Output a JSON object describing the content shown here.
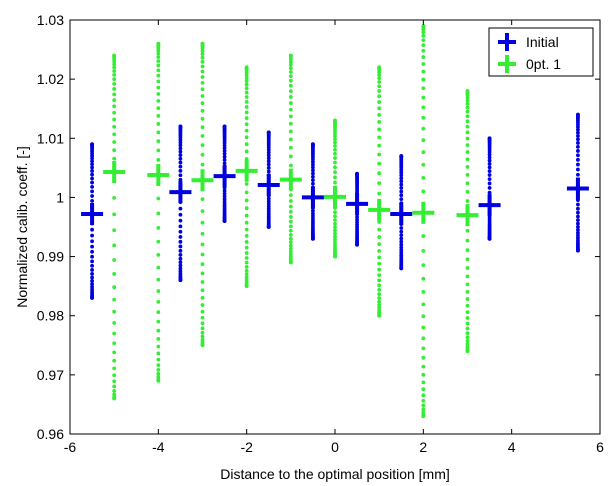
{
  "chart_data": {
    "type": "scatter",
    "title": "",
    "xlabel": "Distance to the optimal position [mm]",
    "ylabel": "Normalized calib. coeff. [-]",
    "xlim": [
      -6,
      6
    ],
    "ylim": [
      0.96,
      1.03
    ],
    "xticks": [
      -6,
      -4,
      -2,
      0,
      2,
      4,
      6
    ],
    "yticks": [
      0.96,
      0.97,
      0.98,
      0.99,
      1,
      1.01,
      1.02,
      1.03
    ],
    "xtick_labels": [
      "-6",
      "-4",
      "-2",
      "0",
      "2",
      "4",
      "6"
    ],
    "ytick_labels": [
      "0.96",
      "0.97",
      "0.98",
      "0.99",
      "1",
      "1.01",
      "1.02",
      "1.03"
    ],
    "grid": false,
    "legend_position": "top-right",
    "series": [
      {
        "name": "Initial",
        "color": "#0000e0",
        "mean_x": [
          -5.5,
          -3.5,
          -2.5,
          -1.5,
          -0.5,
          0.5,
          1.5,
          3.5,
          5.5
        ],
        "mean_y": [
          0.9972,
          1.0009,
          1.0036,
          1.0021,
          1.0,
          0.9989,
          0.9972,
          0.9987,
          1.0015
        ],
        "spread_x": [
          -5.5,
          -3.5,
          -2.5,
          -1.5,
          -0.5,
          0.5,
          1.5,
          3.5,
          5.5
        ],
        "spread_min": [
          0.983,
          0.986,
          0.996,
          0.995,
          0.993,
          0.992,
          0.988,
          0.993,
          0.991
        ],
        "spread_max": [
          1.009,
          1.012,
          1.012,
          1.011,
          1.009,
          1.004,
          1.007,
          1.01,
          1.014
        ]
      },
      {
        "name": "0pt. 1",
        "color": "#33ee33",
        "mean_x": [
          -5,
          -4,
          -3,
          -2,
          -1,
          0,
          1,
          2,
          3
        ],
        "mean_y": [
          1.0043,
          1.0038,
          1.0029,
          1.0045,
          1.003,
          1.0001,
          0.9979,
          0.9974,
          0.997
        ],
        "spread_x": [
          -5,
          -4,
          -3,
          -2,
          -1,
          0,
          1,
          2,
          3
        ],
        "spread_min": [
          0.966,
          0.969,
          0.975,
          0.985,
          0.989,
          0.99,
          0.98,
          0.963,
          0.974
        ],
        "spread_max": [
          1.024,
          1.026,
          1.026,
          1.022,
          1.024,
          1.013,
          1.022,
          1.029,
          1.018
        ]
      }
    ]
  }
}
